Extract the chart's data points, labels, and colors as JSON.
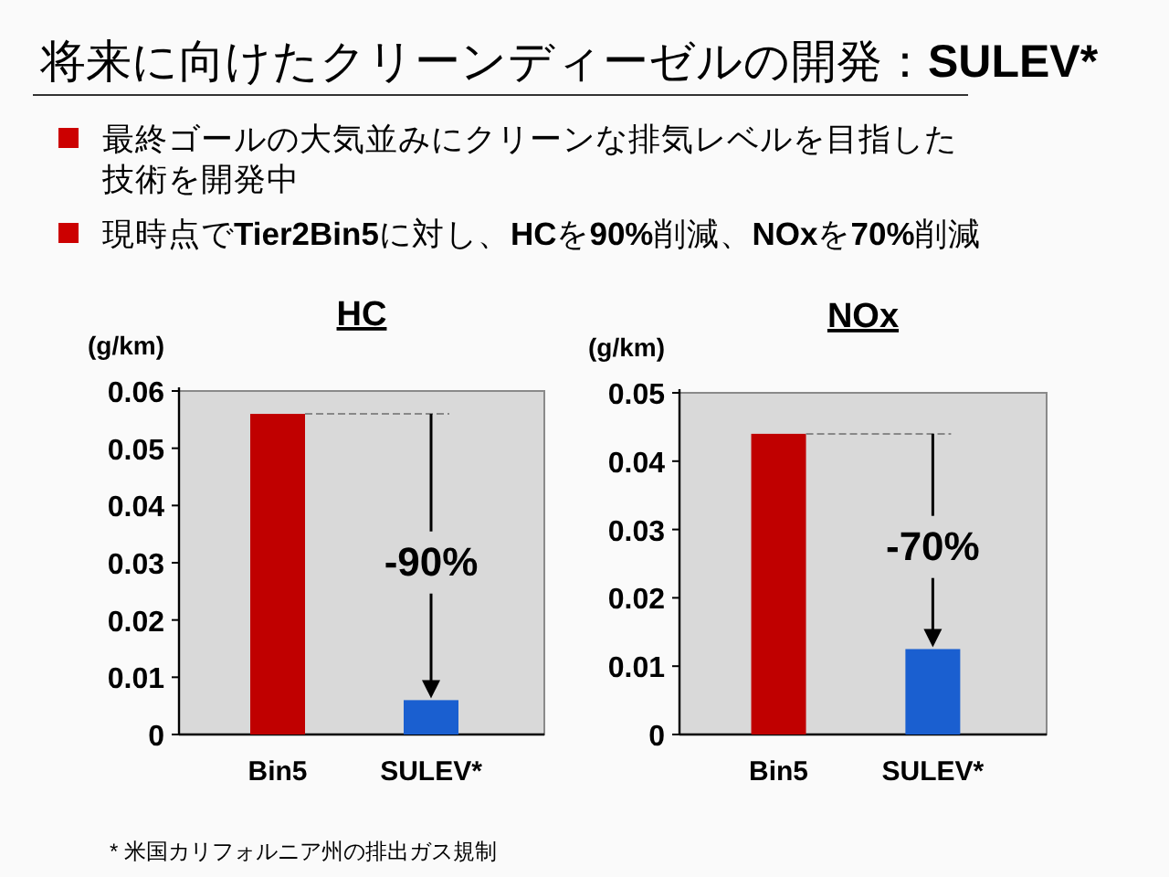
{
  "chart_data": [
    {
      "type": "bar",
      "title": "HC",
      "ylabel": "(g/km)",
      "categories": [
        "Bin5",
        "SULEV*"
      ],
      "values": [
        0.056,
        0.006
      ],
      "colors": [
        "#c00000",
        "#1a5fd0"
      ],
      "ylim": [
        0,
        0.06
      ],
      "yticks": [
        0,
        0.01,
        0.02,
        0.03,
        0.04,
        0.05,
        0.06
      ],
      "ref_lines": [
        {
          "axis": "y",
          "value": 0.056,
          "line_style": "dashed",
          "color": "#888888"
        }
      ],
      "annotations": [
        "将来に向けたクリーンディーゼルの開発：**SULEV***",
        "最終ゴールの大気並みにクリーンな排気レベルを目指した技術を開発中",
        "現時点で**Tier2Bin5**に対し、**HC**を**90%**削減、**NOx**を**70%**削減",
        {
          "text": "-90%",
          "x": "SULEV*",
          "y": 0.006
        }
      ]
    },
    {
      "type": "bar",
      "title": "NOx",
      "ylabel": "(g/km)",
      "categories": [
        "Bin5",
        "SULEV*"
      ],
      "values": [
        0.044,
        0.0125
      ],
      "colors": [
        "#c00000",
        "#1a5fd0"
      ],
      "ylim": [
        0,
        0.05
      ],
      "yticks": [
        0,
        0.01,
        0.02,
        0.03,
        0.04,
        0.05
      ],
      "ref_lines": [
        {
          "axis": "y",
          "value": 0.044,
          "line_style": "dashed",
          "color": "#888888"
        }
      ],
      "annotations": [
        "* 米国カリフォルニア州の排出ガス規制",
        {
          "text": "-70%",
          "x": "SULEV*",
          "y": 0.0125
        }
      ]
    }
  ]
}
